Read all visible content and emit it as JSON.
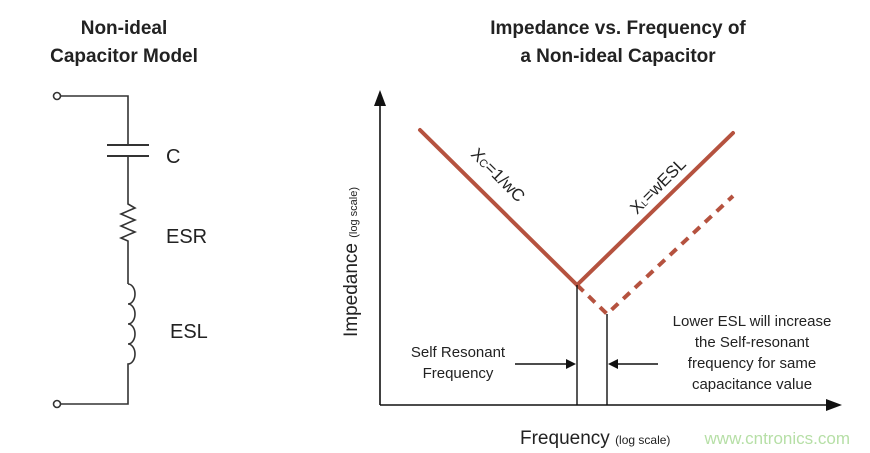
{
  "left": {
    "title_line1": "Non-ideal",
    "title_line2": "Capacitor Model",
    "components": {
      "c": "C",
      "esr": "ESR",
      "esl": "ESL"
    }
  },
  "right": {
    "title_line1": "Impedance vs. Frequency of",
    "title_line2": "a Non-ideal Capacitor",
    "y_label": "Impedance",
    "y_label_note": "(log scale)",
    "x_label": "Frequency",
    "x_label_note": "(log scale)",
    "xc_label_main": "X",
    "xc_label_sub": "C",
    "xc_label_rest": "=1/wC",
    "xl_label_main": "X",
    "xl_label_sub": "L",
    "xl_label_rest": "=wESL",
    "srf_line1": "Self Resonant",
    "srf_line2": "Frequency",
    "note_lines": [
      "Lower ESL will increase",
      "the Self-resonant",
      "frequency for same",
      "capacitance value"
    ],
    "curve_color": "#b5523f"
  },
  "watermark": "www.cntronics.com"
}
